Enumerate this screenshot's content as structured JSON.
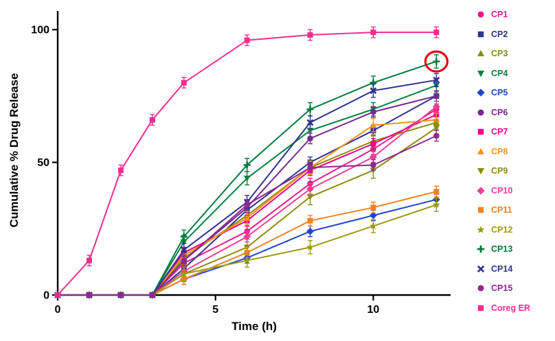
{
  "chart_data": {
    "type": "line",
    "title": "",
    "xlabel": "Time (h)",
    "ylabel": "Cumulative % Drug Release",
    "x": [
      0,
      1,
      2,
      3,
      4,
      6,
      8,
      10,
      12
    ],
    "x_ticks": [
      0,
      5,
      10
    ],
    "y_ticks": [
      0,
      50,
      100
    ],
    "xlim": [
      0,
      12.45
    ],
    "ylim": [
      0,
      106
    ],
    "grid": false,
    "legend_position": "right",
    "error_bars": true,
    "highlight": {
      "label": "circled-point",
      "series": "CP13",
      "x": 12,
      "y": 88,
      "color": "#E30613"
    },
    "series": [
      {
        "name": "CP1",
        "color": "#E8198B",
        "marker": "circle",
        "err": 2,
        "values": [
          0,
          0,
          0,
          0,
          12,
          24,
          42,
          55,
          70
        ]
      },
      {
        "name": "CP2",
        "color": "#2E3192",
        "marker": "square",
        "err": 2,
        "values": [
          0,
          0,
          0,
          0,
          10,
          32,
          50,
          62,
          75
        ]
      },
      {
        "name": "CP3",
        "color": "#8A8C0A",
        "marker": "triangle-up",
        "err": 2.5,
        "values": [
          0,
          0,
          0,
          0,
          14,
          30,
          48,
          58,
          65
        ]
      },
      {
        "name": "CP4",
        "color": "#00833E",
        "marker": "triangle-down",
        "err": 2.5,
        "values": [
          0,
          0,
          0,
          0,
          20,
          44,
          62,
          70,
          79
        ]
      },
      {
        "name": "CP5",
        "color": "#2144CE",
        "marker": "diamond",
        "err": 2,
        "values": [
          0,
          0,
          0,
          0,
          6,
          14,
          24,
          30,
          36
        ]
      },
      {
        "name": "CP6",
        "color": "#79278E",
        "marker": "circle",
        "err": 2,
        "values": [
          0,
          0,
          0,
          0,
          13,
          33,
          59,
          69,
          75
        ]
      },
      {
        "name": "CP7",
        "color": "#EC008C",
        "marker": "square",
        "err": 2,
        "values": [
          0,
          0,
          0,
          0,
          16,
          28,
          47,
          57,
          68
        ]
      },
      {
        "name": "CP8",
        "color": "#F7941D",
        "marker": "triangle-up",
        "err": 2.5,
        "values": [
          0,
          0,
          0,
          0,
          15,
          29,
          48,
          64,
          66
        ]
      },
      {
        "name": "CP9",
        "color": "#8A8C0A",
        "marker": "triangle-down",
        "err": 3,
        "values": [
          0,
          0,
          0,
          0,
          8,
          18,
          37,
          47,
          63
        ]
      },
      {
        "name": "CP10",
        "color": "#EF3E96",
        "marker": "diamond",
        "err": 2,
        "values": [
          0,
          0,
          0,
          0,
          9,
          22,
          40,
          52,
          71
        ]
      },
      {
        "name": "CP11",
        "color": "#F58220",
        "marker": "square",
        "err": 2,
        "values": [
          0,
          0,
          0,
          0,
          6,
          16,
          28,
          33,
          39
        ]
      },
      {
        "name": "CP12",
        "color": "#9A9B0F",
        "marker": "star",
        "err": 2.5,
        "values": [
          0,
          0,
          0,
          0,
          8,
          13,
          18,
          26,
          34
        ]
      },
      {
        "name": "CP13",
        "color": "#007A3D",
        "marker": "plus",
        "err": 2.5,
        "values": [
          0,
          0,
          0,
          0,
          22,
          49,
          70,
          80,
          88
        ]
      },
      {
        "name": "CP14",
        "color": "#2E3192",
        "marker": "x",
        "err": 2.5,
        "values": [
          0,
          0,
          0,
          0,
          17,
          35,
          65,
          77,
          81
        ]
      },
      {
        "name": "CP15",
        "color": "#92278F",
        "marker": "circle",
        "err": 2,
        "values": [
          0,
          0,
          0,
          0,
          13,
          34,
          48,
          49,
          60
        ]
      },
      {
        "name": "Coreg ER",
        "color": "#F32B91",
        "marker": "square",
        "err": 2,
        "values": [
          0,
          13,
          47,
          66,
          80,
          96,
          98,
          99,
          99
        ]
      }
    ]
  }
}
